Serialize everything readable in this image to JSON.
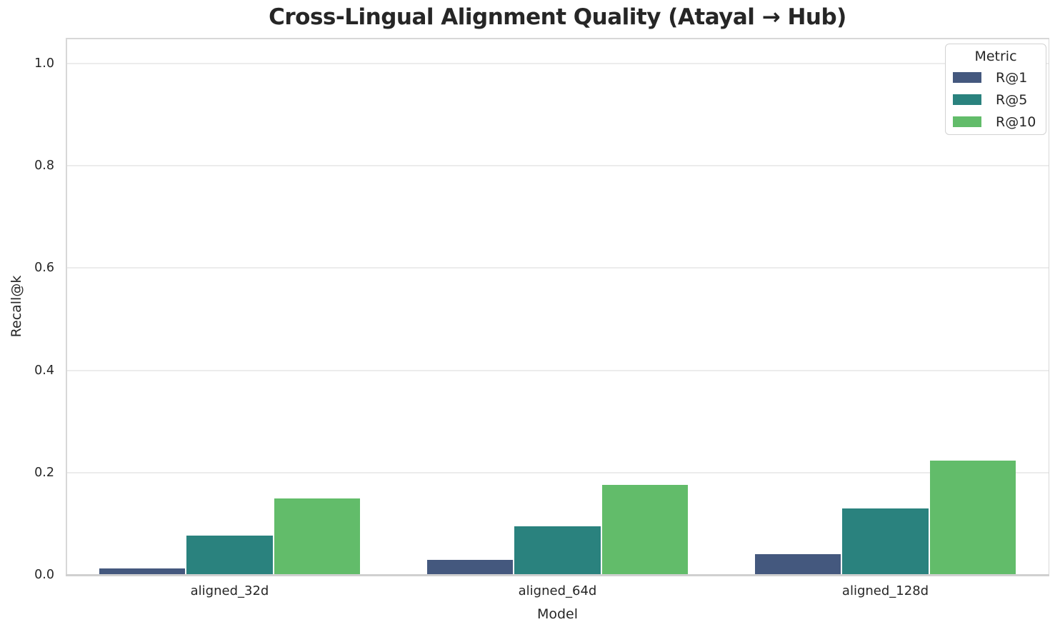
{
  "chart_data": {
    "type": "bar",
    "title": "Cross-Lingual Alignment Quality (Atayal → Hub)",
    "xlabel": "Model",
    "ylabel": "Recall@k",
    "legend_title": "Metric",
    "legend_position": "upper right",
    "grid": true,
    "categories": [
      "aligned_32d",
      "aligned_64d",
      "aligned_128d"
    ],
    "series": [
      {
        "name": "R@1",
        "color": "#44587E",
        "values": [
          0.013,
          0.03,
          0.041
        ]
      },
      {
        "name": "R@5",
        "color": "#2A827E",
        "values": [
          0.077,
          0.095,
          0.13
        ]
      },
      {
        "name": "R@10",
        "color": "#62BC6A",
        "values": [
          0.15,
          0.176,
          0.224
        ]
      }
    ],
    "ylim": [
      0,
      1.05
    ],
    "yticks": [
      0.0,
      0.2,
      0.4,
      0.6,
      0.8,
      1.0
    ],
    "ytick_labels": [
      "0.0",
      "0.2",
      "0.4",
      "0.6",
      "0.8",
      "1.0"
    ]
  },
  "colors": {
    "text": "#262626",
    "grid": "#ececec",
    "spine": "#d8d8d8",
    "background": "#ffffff"
  }
}
